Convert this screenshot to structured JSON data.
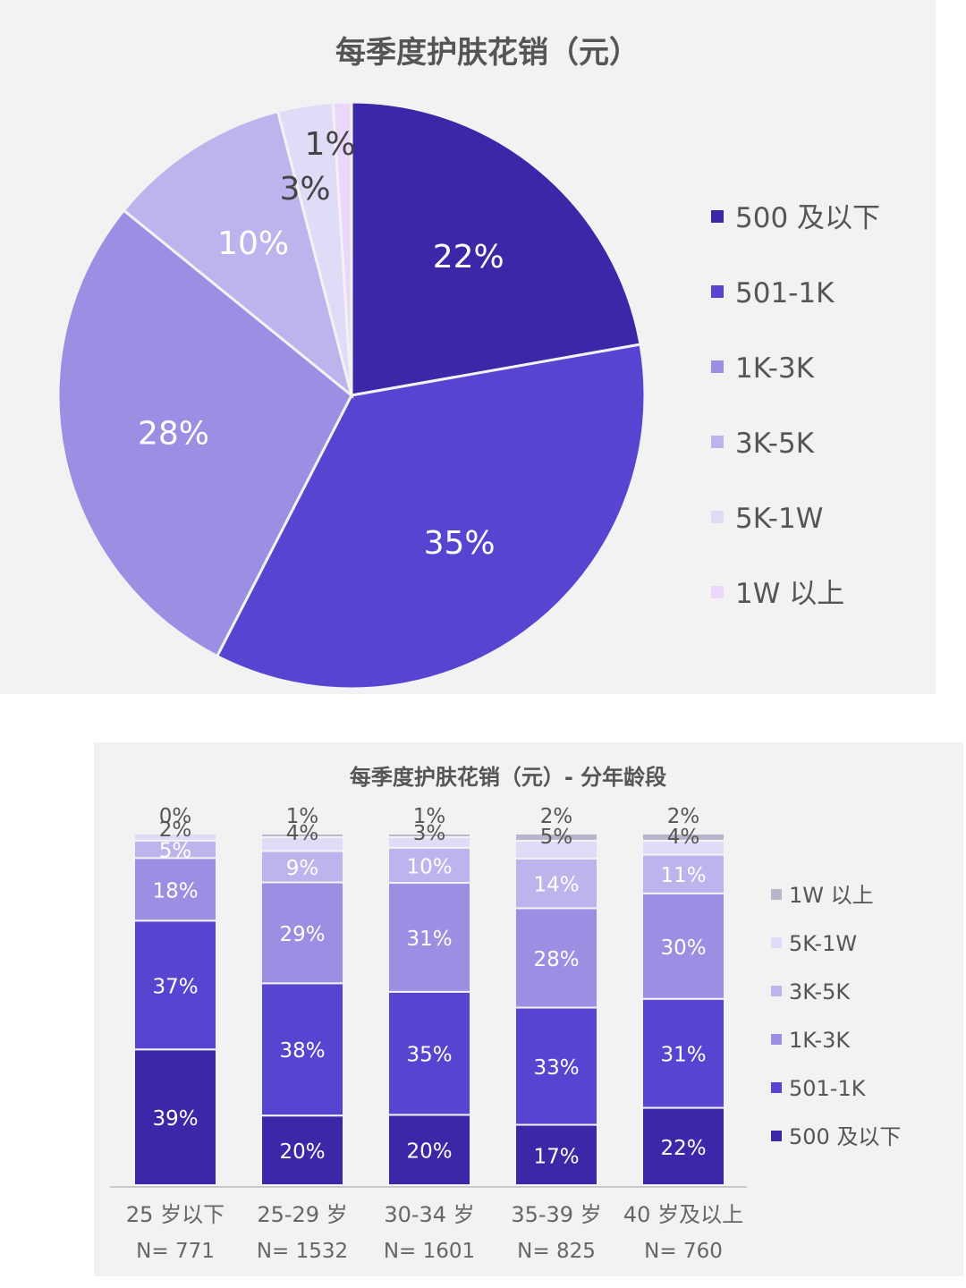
{
  "chart_data": [
    {
      "type": "pie",
      "title": "每季度护肤花销（元）",
      "categories": [
        "500 及以下",
        "501-1K",
        "1K-3K",
        "3K-5K",
        "5K-1W",
        "1W 以上"
      ],
      "values": [
        22,
        35,
        28,
        10,
        3,
        1
      ],
      "labels": [
        "22%",
        "35%",
        "28%",
        "10%",
        "3%",
        "1%"
      ],
      "colors": [
        "#3b28a8",
        "#5745d2",
        "#9b8fe3",
        "#bdb4ee",
        "#e0dcf7",
        "#ead7fb"
      ],
      "legend": {
        "position": "right"
      },
      "grid": false
    },
    {
      "type": "bar",
      "stacked": true,
      "title": "每季度护肤花销（元）- 分年龄段",
      "categories": [
        "25 岁以下",
        "25-29 岁",
        "30-34 岁",
        "35-39 岁",
        "40 岁及以上"
      ],
      "sample_sizes": [
        "N= 771",
        "N= 1532",
        "N= 1601",
        "N= 825",
        "N= 760"
      ],
      "series": [
        {
          "name": "500 及以下",
          "color": "#3b28a8",
          "values": [
            39,
            20,
            20,
            17,
            22
          ],
          "labels": [
            "39%",
            "20%",
            "20%",
            "17%",
            "22%"
          ]
        },
        {
          "name": "501-1K",
          "color": "#5745d2",
          "values": [
            37,
            38,
            35,
            33,
            31
          ],
          "labels": [
            "37%",
            "38%",
            "35%",
            "33%",
            "31%"
          ]
        },
        {
          "name": "1K-3K",
          "color": "#9b8fe3",
          "values": [
            18,
            29,
            31,
            28,
            30
          ],
          "labels": [
            "18%",
            "29%",
            "31%",
            "28%",
            "30%"
          ]
        },
        {
          "name": "3K-5K",
          "color": "#bdb4ee",
          "values": [
            5,
            9,
            10,
            14,
            11
          ],
          "labels": [
            "5%",
            "9%",
            "10%",
            "14%",
            "11%"
          ]
        },
        {
          "name": "5K-1W",
          "color": "#e0dcf7",
          "values": [
            2,
            4,
            3,
            5,
            4
          ],
          "labels": [
            "2%",
            "4%",
            "3%",
            "5%",
            "4%"
          ]
        },
        {
          "name": "1W 以上",
          "color": "#b8b4cc",
          "values": [
            0,
            1,
            1,
            2,
            2
          ],
          "labels": [
            "0%",
            "1%",
            "1%",
            "2%",
            "2%"
          ]
        }
      ],
      "ylim": [
        0,
        100
      ],
      "legend": {
        "position": "right"
      },
      "grid": false
    }
  ]
}
